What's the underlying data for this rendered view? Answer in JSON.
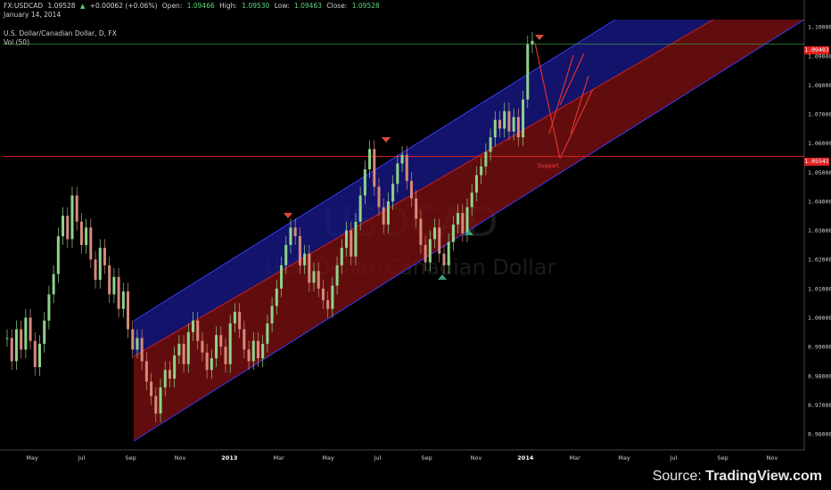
{
  "header": {
    "symbol": "FX:USDCAD",
    "last": "1.09528",
    "change": "+0.00062 (+0.06%)",
    "open_label": "Open:",
    "open": "1.09466",
    "high_label": "High:",
    "high": "1.09530",
    "low_label": "Low:",
    "low": "1.09463",
    "close_label": "Close:",
    "close": "1.09528",
    "date": "January 14, 2014",
    "title": "U.S. Dollar/Canadian Dollar, D, FX",
    "volume": "Vol (50)"
  },
  "watermark": {
    "symbol": "USDCAD",
    "name": "U.S. Dollar/Canadian Dollar"
  },
  "annotation": "Support",
  "footer": {
    "source_label": "Source:",
    "source_brand": "TradingView.com"
  },
  "price_tags": {
    "high_line": "1.09403",
    "support_line": "1.05541"
  },
  "colors": {
    "background": "#000000",
    "upper_channel": "#1a1a8f",
    "lower_channel": "#7a1010",
    "support_line": "#e02020",
    "arrow_red": "#e04b3a",
    "arrow_green": "#3aa07a"
  },
  "chart_data": {
    "type": "candlestick",
    "y_ticks": [
      "1.10000",
      "1.09000",
      "1.08000",
      "1.07000",
      "1.06000",
      "1.05000",
      "1.04000",
      "1.03000",
      "1.02000",
      "1.01000",
      "1.00000",
      "0.99000",
      "0.98000",
      "0.97000",
      "0.96000"
    ],
    "x_ticks": [
      "May",
      "Jul",
      "Sep",
      "Nov",
      "2013",
      "Mar",
      "May",
      "Jul",
      "Sep",
      "Nov",
      "2014",
      "Mar",
      "May",
      "Jul",
      "Sep",
      "Nov"
    ],
    "ylim": [
      0.9545,
      1.1025
    ],
    "support_level": 1.05541,
    "high_level": 1.09403,
    "closes": [
      0.993,
      0.985,
      0.996,
      0.989,
      1.0,
      0.992,
      0.983,
      0.991,
      0.999,
      1.008,
      1.015,
      1.028,
      1.035,
      1.027,
      1.042,
      1.033,
      1.025,
      1.031,
      1.02,
      1.013,
      1.024,
      1.018,
      1.008,
      1.014,
      1.003,
      1.009,
      0.996,
      0.989,
      0.993,
      0.985,
      0.978,
      0.973,
      0.967,
      0.976,
      0.982,
      0.979,
      0.987,
      0.991,
      0.984,
      0.995,
      0.999,
      0.992,
      0.988,
      0.982,
      0.986,
      0.994,
      0.99,
      0.984,
      0.998,
      1.002,
      0.996,
      0.989,
      0.985,
      0.992,
      0.986,
      0.991,
      0.998,
      1.004,
      1.01,
      1.018,
      1.025,
      1.031,
      1.028,
      1.018,
      1.022,
      1.012,
      1.016,
      1.01,
      1.006,
      1.003,
      1.011,
      1.018,
      1.024,
      1.03,
      1.021,
      1.033,
      1.042,
      1.051,
      1.058,
      1.045,
      1.038,
      1.032,
      1.04,
      1.046,
      1.053,
      1.056,
      1.047,
      1.041,
      1.034,
      1.025,
      1.019,
      1.027,
      1.031,
      1.022,
      1.018,
      1.026,
      1.032,
      1.036,
      1.029,
      1.038,
      1.043,
      1.049,
      1.052,
      1.057,
      1.062,
      1.068,
      1.065,
      1.071,
      1.064,
      1.069,
      1.062,
      1.075,
      1.094,
      1.0952
    ]
  }
}
